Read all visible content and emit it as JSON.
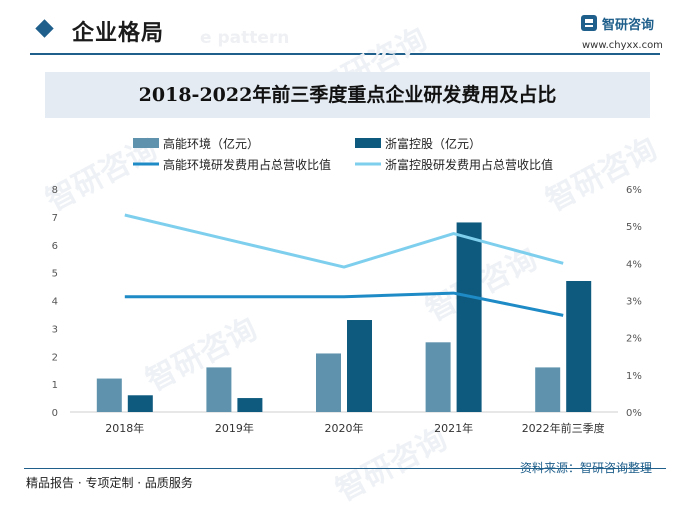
{
  "header": {
    "title": "企业格局",
    "bg_text": "e pattern"
  },
  "logo": {
    "name": "智研咨询",
    "url": "www.chyxx.com"
  },
  "watermark": "智研咨询",
  "colors": {
    "accent": "#1f5f8b",
    "bar_gaoneng": "#5f93ad",
    "bar_zhefu": "#0e5a7e",
    "line_gaoneng": "#1e8ac6",
    "line_zhefu": "#7ecfee",
    "title_band": "#e4ebf2"
  },
  "chart_data": {
    "type": "bar",
    "title": "2018-2022年前三季度重点企业研发费用及占比",
    "categories": [
      "2018年",
      "2019年",
      "2020年",
      "2021年",
      "2022年前三季度"
    ],
    "series": [
      {
        "name": "高能环境（亿元）",
        "type": "bar",
        "axis": "left",
        "values": [
          1.2,
          1.6,
          2.1,
          2.5,
          1.6
        ]
      },
      {
        "name": "浙富控股（亿元）",
        "type": "bar",
        "axis": "left",
        "values": [
          0.6,
          0.5,
          3.3,
          6.8,
          4.7
        ]
      },
      {
        "name": "高能环境研发费用占总营收比值",
        "type": "line",
        "axis": "right",
        "values": [
          3.1,
          3.1,
          3.1,
          3.2,
          2.6
        ]
      },
      {
        "name": "浙富控股研发费用占总营收比值",
        "type": "line",
        "axis": "right",
        "values": [
          5.3,
          4.6,
          3.9,
          4.8,
          4.0
        ]
      }
    ],
    "y_left": {
      "min": 0,
      "max": 8,
      "ticks": [
        "0",
        "1",
        "2",
        "3",
        "4",
        "5",
        "6",
        "7",
        "8"
      ]
    },
    "y_right": {
      "min": 0,
      "max": 6,
      "ticks": [
        "0%",
        "1%",
        "2%",
        "3%",
        "4%",
        "5%",
        "6%"
      ]
    },
    "grid": false,
    "legend_position": "top"
  },
  "footer": {
    "left": "精品报告 · 专项定制 · 品质服务",
    "right": "资料来源：智研咨询整理"
  }
}
